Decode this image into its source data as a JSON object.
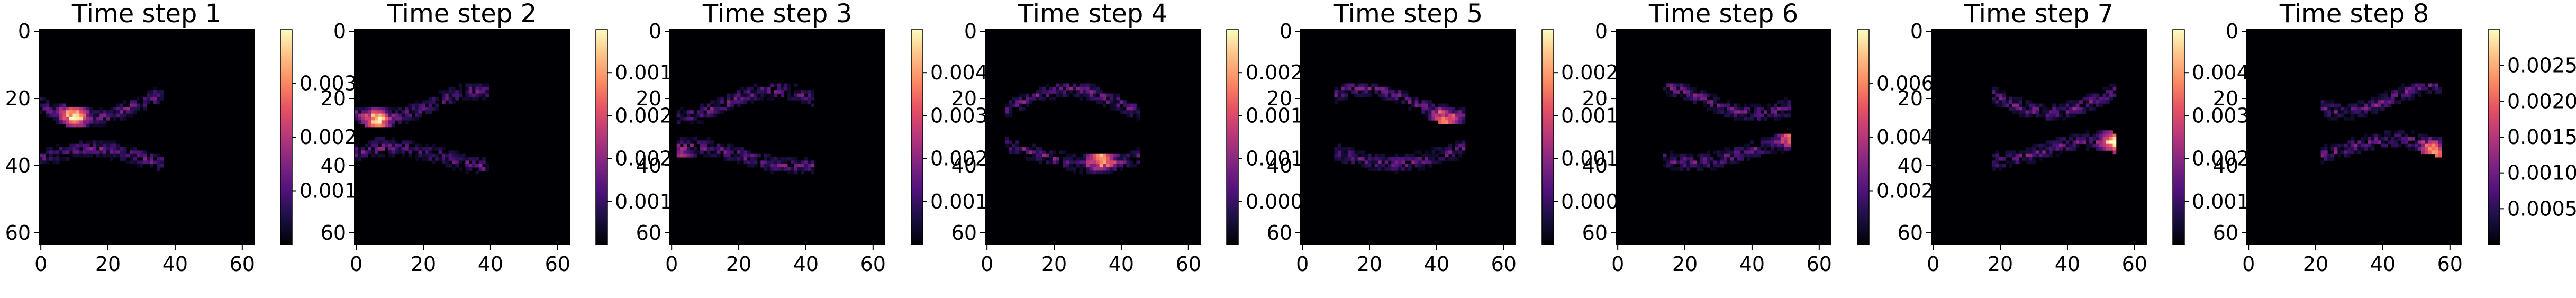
{
  "chart_data": [
    {
      "type": "heatmap",
      "title": "Time step 1",
      "xticks": [
        "0",
        "20",
        "40",
        "60"
      ],
      "yticks": [
        "0",
        "20",
        "40",
        "60"
      ],
      "colorbar_ticks": [
        "0.001",
        "0.002",
        "0.003"
      ],
      "colorbar_max": 0.0039,
      "peak_x": 10,
      "peak_y": 25
    },
    {
      "type": "heatmap",
      "title": "Time step 2",
      "xticks": [
        "0",
        "20",
        "40",
        "60"
      ],
      "yticks": [
        "0",
        "20",
        "40",
        "60"
      ],
      "colorbar_ticks": [
        "0.001",
        "0.002",
        "0.002",
        "0.001"
      ],
      "colorbar_max": 0.0025,
      "peak_x": 6,
      "peak_y": 27
    },
    {
      "type": "heatmap",
      "title": "Time step 3",
      "xticks": [
        "0",
        "20",
        "40",
        "60"
      ],
      "yticks": [
        "0",
        "20",
        "40",
        "60"
      ],
      "colorbar_ticks": [
        "0.001",
        "0.002",
        "0.003",
        "0.004"
      ],
      "colorbar_max": 0.0049,
      "peak_x": 3,
      "peak_y": 40
    },
    {
      "type": "heatmap",
      "title": "Time step 4",
      "xticks": [
        "0",
        "20",
        "40",
        "60"
      ],
      "yticks": [
        "0",
        "20",
        "40",
        "60"
      ],
      "colorbar_ticks": [
        "0.000",
        "0.001",
        "0.001",
        "0.002"
      ],
      "colorbar_max": 0.0027,
      "peak_x": 34,
      "peak_y": 37
    },
    {
      "type": "heatmap",
      "title": "Time step 5",
      "xticks": [
        "0",
        "20",
        "40",
        "60"
      ],
      "yticks": [
        "0",
        "20",
        "40",
        "60"
      ],
      "colorbar_ticks": [
        "0.000",
        "0.001",
        "0.001",
        "0.002"
      ],
      "colorbar_max": 0.0029,
      "peak_x": 42,
      "peak_y": 28
    },
    {
      "type": "heatmap",
      "title": "Time step 6",
      "xticks": [
        "0",
        "20",
        "40",
        "60"
      ],
      "yticks": [
        "0",
        "20",
        "40",
        "60"
      ],
      "colorbar_ticks": [
        "0.002",
        "0.004",
        "0.006"
      ],
      "colorbar_max": 0.0068,
      "peak_x": 52,
      "peak_y": 30
    },
    {
      "type": "heatmap",
      "title": "Time step 7",
      "xticks": [
        "0",
        "20",
        "40",
        "60"
      ],
      "yticks": [
        "0",
        "20",
        "40",
        "60"
      ],
      "colorbar_ticks": [
        "0.001",
        "0.002",
        "0.003",
        "0.004"
      ],
      "colorbar_max": 0.0049,
      "peak_x": 54,
      "peak_y": 33
    },
    {
      "type": "heatmap",
      "title": "Time step 8",
      "xticks": [
        "0",
        "20",
        "40",
        "60"
      ],
      "yticks": [
        "0",
        "20",
        "40",
        "60"
      ],
      "colorbar_ticks": [
        "0.0005",
        "0.0010",
        "0.0015",
        "0.0020",
        "0.0025"
      ],
      "colorbar_max": 0.0029,
      "peak_x": 55,
      "peak_y": 37
    }
  ]
}
